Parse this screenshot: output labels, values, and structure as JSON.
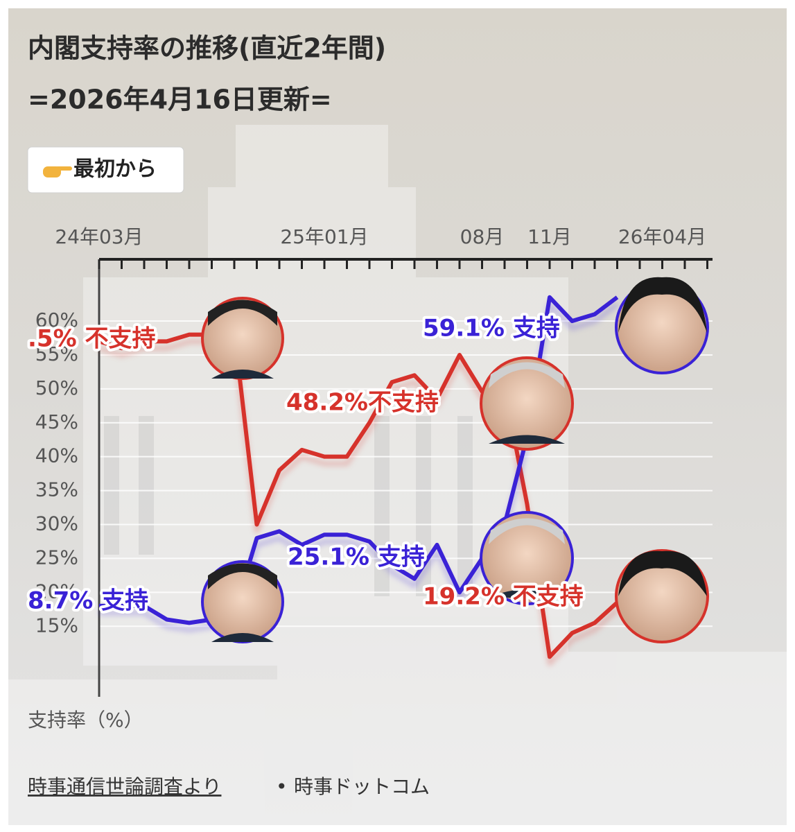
{
  "chart_data": {
    "type": "line",
    "title": "内閣支持率の推移(直近2年間)",
    "subtitle": "=2026年4月16日更新=",
    "button": "最初から",
    "y_label": "支持率（%）",
    "source": "時事通信世論調査より",
    "source_sep": "•",
    "publisher": "時事ドットコム",
    "categories": [
      "24年03月",
      null,
      null,
      null,
      null,
      null,
      null,
      null,
      null,
      null,
      "25年01月",
      null,
      null,
      null,
      null,
      null,
      null,
      "08月",
      null,
      null,
      "11月",
      null,
      null,
      null,
      null,
      "26年04月",
      null,
      null
    ],
    "series": [
      {
        "name": "不支持",
        "color": "#d6322b",
        "values": [
          57,
          56,
          57,
          57,
          58,
          58,
          58.5,
          30,
          38,
          41,
          40,
          40,
          45,
          51,
          52,
          48.5,
          55,
          49.6,
          50,
          33,
          10.5,
          14,
          15.5,
          18.5,
          null,
          null,
          null,
          null
        ]
      },
      {
        "name": "支持",
        "color": "#3a22d6",
        "values": [
          18,
          18,
          18,
          16,
          15.5,
          16,
          17,
          28,
          29,
          27,
          28.5,
          28.5,
          27.5,
          24,
          22,
          27,
          20,
          25,
          30,
          43,
          63.5,
          60,
          61,
          63.5,
          null,
          null,
          null,
          null
        ]
      }
    ],
    "annotations": [
      {
        "text": ".5% 不支持",
        "color": "#d6322b"
      },
      {
        "text": "8.7% 支持",
        "color": "#3a22d6"
      },
      {
        "text": "25.1% 支持",
        "color": "#3a22d6"
      },
      {
        "text": "48.2%不支持",
        "color": "#d6322b"
      },
      {
        "text": "59.1% 支持",
        "color": "#3a22d6"
      },
      {
        "text": "19.2% 不支持",
        "color": "#d6322b"
      }
    ],
    "ylim": [
      4.6,
      69.1
    ],
    "yticks": [
      {
        "value": 15,
        "label": "15%"
      },
      {
        "value": 20,
        "label": "20%"
      },
      {
        "value": 25,
        "label": "25%"
      },
      {
        "value": 30,
        "label": "30%"
      },
      {
        "value": 35,
        "label": "35%"
      },
      {
        "value": 40,
        "label": "40%"
      },
      {
        "value": 45,
        "label": "45%"
      },
      {
        "value": 50,
        "label": "50%"
      },
      {
        "value": 55,
        "label": "55%"
      },
      {
        "value": 60,
        "label": "60%"
      }
    ],
    "grid": true
  }
}
